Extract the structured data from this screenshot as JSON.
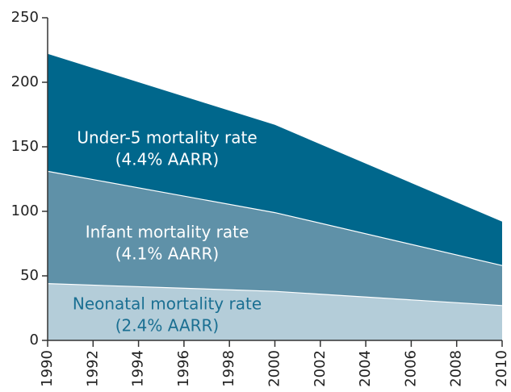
{
  "chart_data": {
    "type": "area",
    "x": [
      1990,
      2000,
      2010
    ],
    "series": [
      {
        "name": "Under-5 mortality rate",
        "note": "(4.4% AARR)",
        "color": "#00678c",
        "label_color": "#ffffff",
        "values": [
          222,
          167,
          92
        ]
      },
      {
        "name": "Infant mortality rate",
        "note": "(4.1% AARR)",
        "color": "#5f91a8",
        "label_color": "#ffffff",
        "values": [
          131,
          99,
          58
        ]
      },
      {
        "name": "Neonatal mortality rate",
        "note": "(2.4% AARR)",
        "color": "#b4cdd9",
        "label_color": "#1a6f92",
        "values": [
          44,
          38,
          27
        ]
      }
    ],
    "xlim": [
      1990,
      2010
    ],
    "xticks": [
      1990,
      1992,
      1994,
      1996,
      1998,
      2000,
      2002,
      2004,
      2006,
      2008,
      2010
    ],
    "ylim": [
      0,
      250
    ],
    "yticks": [
      0,
      50,
      100,
      150,
      200,
      250
    ]
  }
}
